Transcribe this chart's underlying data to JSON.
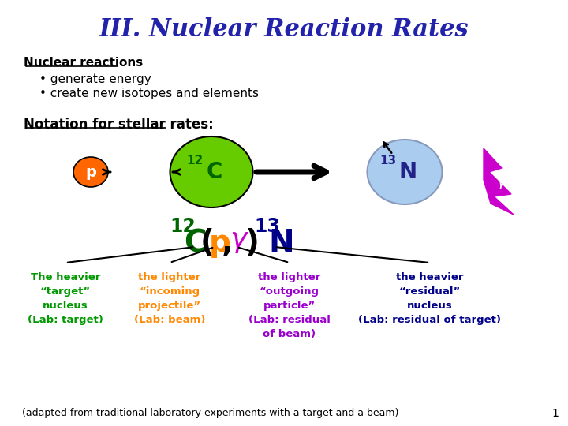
{
  "title": "III. Nuclear Reaction Rates",
  "title_color": "#2222AA",
  "bg_color": "#FFFFFF",
  "section_header": "Nuclear reactions",
  "bullet1": "generate energy",
  "bullet2": "create new isotopes and elements",
  "notation_header": "Notation for stellar rates:",
  "p_color": "#FF6600",
  "C12_color": "#66CC00",
  "N13_color": "#AACCEE",
  "gamma_color": "#CC00CC",
  "green_text": "#009900",
  "orange_text": "#FF8800",
  "purple_text": "#9900CC",
  "navy_text": "#000088",
  "col1_text": "The heavier\n“target”\nnucleus\n(Lab: target)",
  "col2_text": "the lighter\n“incoming\nprojectile”\n(Lab: beam)",
  "col3_text": "the lighter\n“outgoing\nparticle”\n(Lab: residual\nof beam)",
  "col4_text": "the heavier\n“residual”\nnucleus\n(Lab: residual of target)",
  "footer": "(adapted from traditional laboratory experiments with a target and a beam)",
  "page_num": "1"
}
